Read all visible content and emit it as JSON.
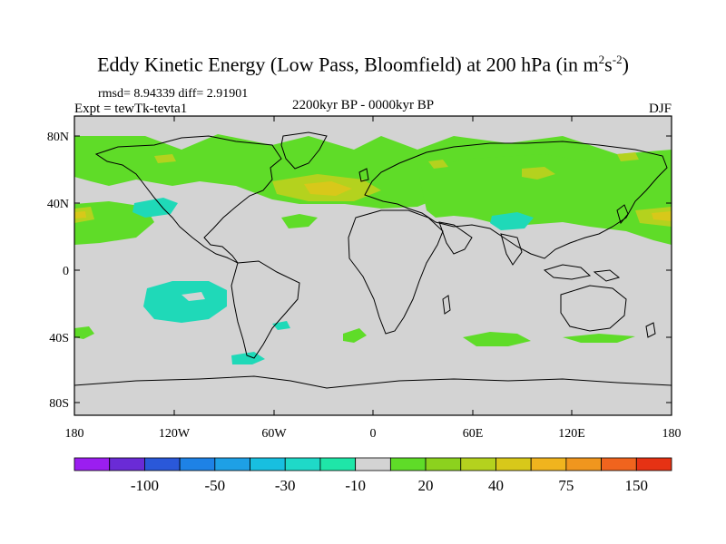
{
  "title": {
    "main": "Eddy Kinetic Energy (Low Pass, Bloomfield) at 200 hPa (in m",
    "sup1": "2",
    "mid": "s",
    "sup2": "-2",
    "end": ")"
  },
  "stats": {
    "rmsd_line": "rmsd= 8.94339 diff= 2.91901"
  },
  "experiment": "Expt = tewTk-tevta1",
  "period": "2200kyr BP - 0000kyr BP",
  "season": "DJF",
  "map": {
    "projection": "cylindrical-equidistant",
    "background_color": "#d3d3d3",
    "lat_ticks": [
      "80N",
      "40N",
      "0",
      "40S",
      "80S"
    ],
    "lon_ticks": [
      "180",
      "120W",
      "60W",
      "0",
      "60E",
      "120E",
      "180"
    ]
  },
  "colorbar": {
    "colors": [
      "#9b1ef0",
      "#6a2bd6",
      "#2a58d9",
      "#1e82e6",
      "#1ea0e6",
      "#18bfe0",
      "#1fd9c8",
      "#1fe6a8",
      "#d3d3d3",
      "#5fdc28",
      "#8cd21e",
      "#b4d21e",
      "#d8c81a",
      "#f0b41e",
      "#f0961e",
      "#f0641e",
      "#e63214"
    ],
    "labels": [
      "-100",
      "-50",
      "-30",
      "-10",
      "20",
      "40",
      "75",
      "150"
    ]
  }
}
